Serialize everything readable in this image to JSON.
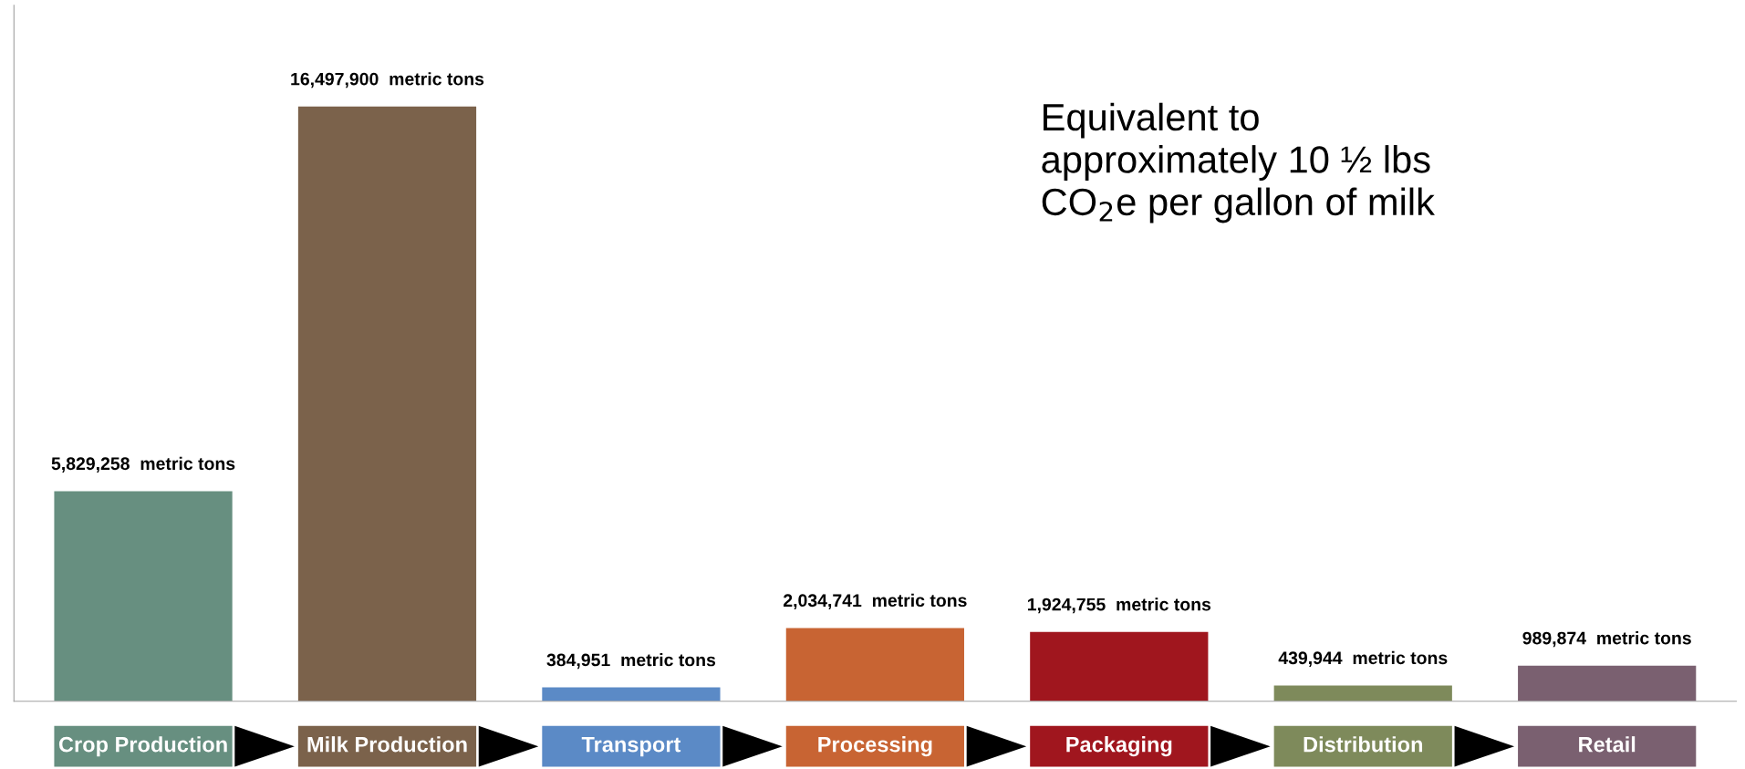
{
  "chart_data": {
    "type": "bar",
    "categories": [
      "Crop Production",
      "Milk Production",
      "Transport",
      "Processing",
      "Packaging",
      "Distribution",
      "Retail"
    ],
    "values": [
      5829258,
      16497900,
      384951,
      2034741,
      1924755,
      439944,
      989874
    ],
    "colors": [
      "#678f80",
      "#7b624b",
      "#5b8ac6",
      "#c86433",
      "#a0161e",
      "#7e8a5b",
      "#7a6070"
    ],
    "value_labels": [
      "5,829,258  metric tons",
      "16,497,900  metric tons",
      "384,951  metric tons",
      "2,034,741  metric tons",
      "1,924,755  metric tons",
      "439,944  metric tons",
      "989,874  metric tons"
    ],
    "annotations": [
      "Equivalent to\napproximately 10 ½ lbs\nCO$_{2}$e per gallon of milk"
    ],
    "data_labels": false
  }
}
